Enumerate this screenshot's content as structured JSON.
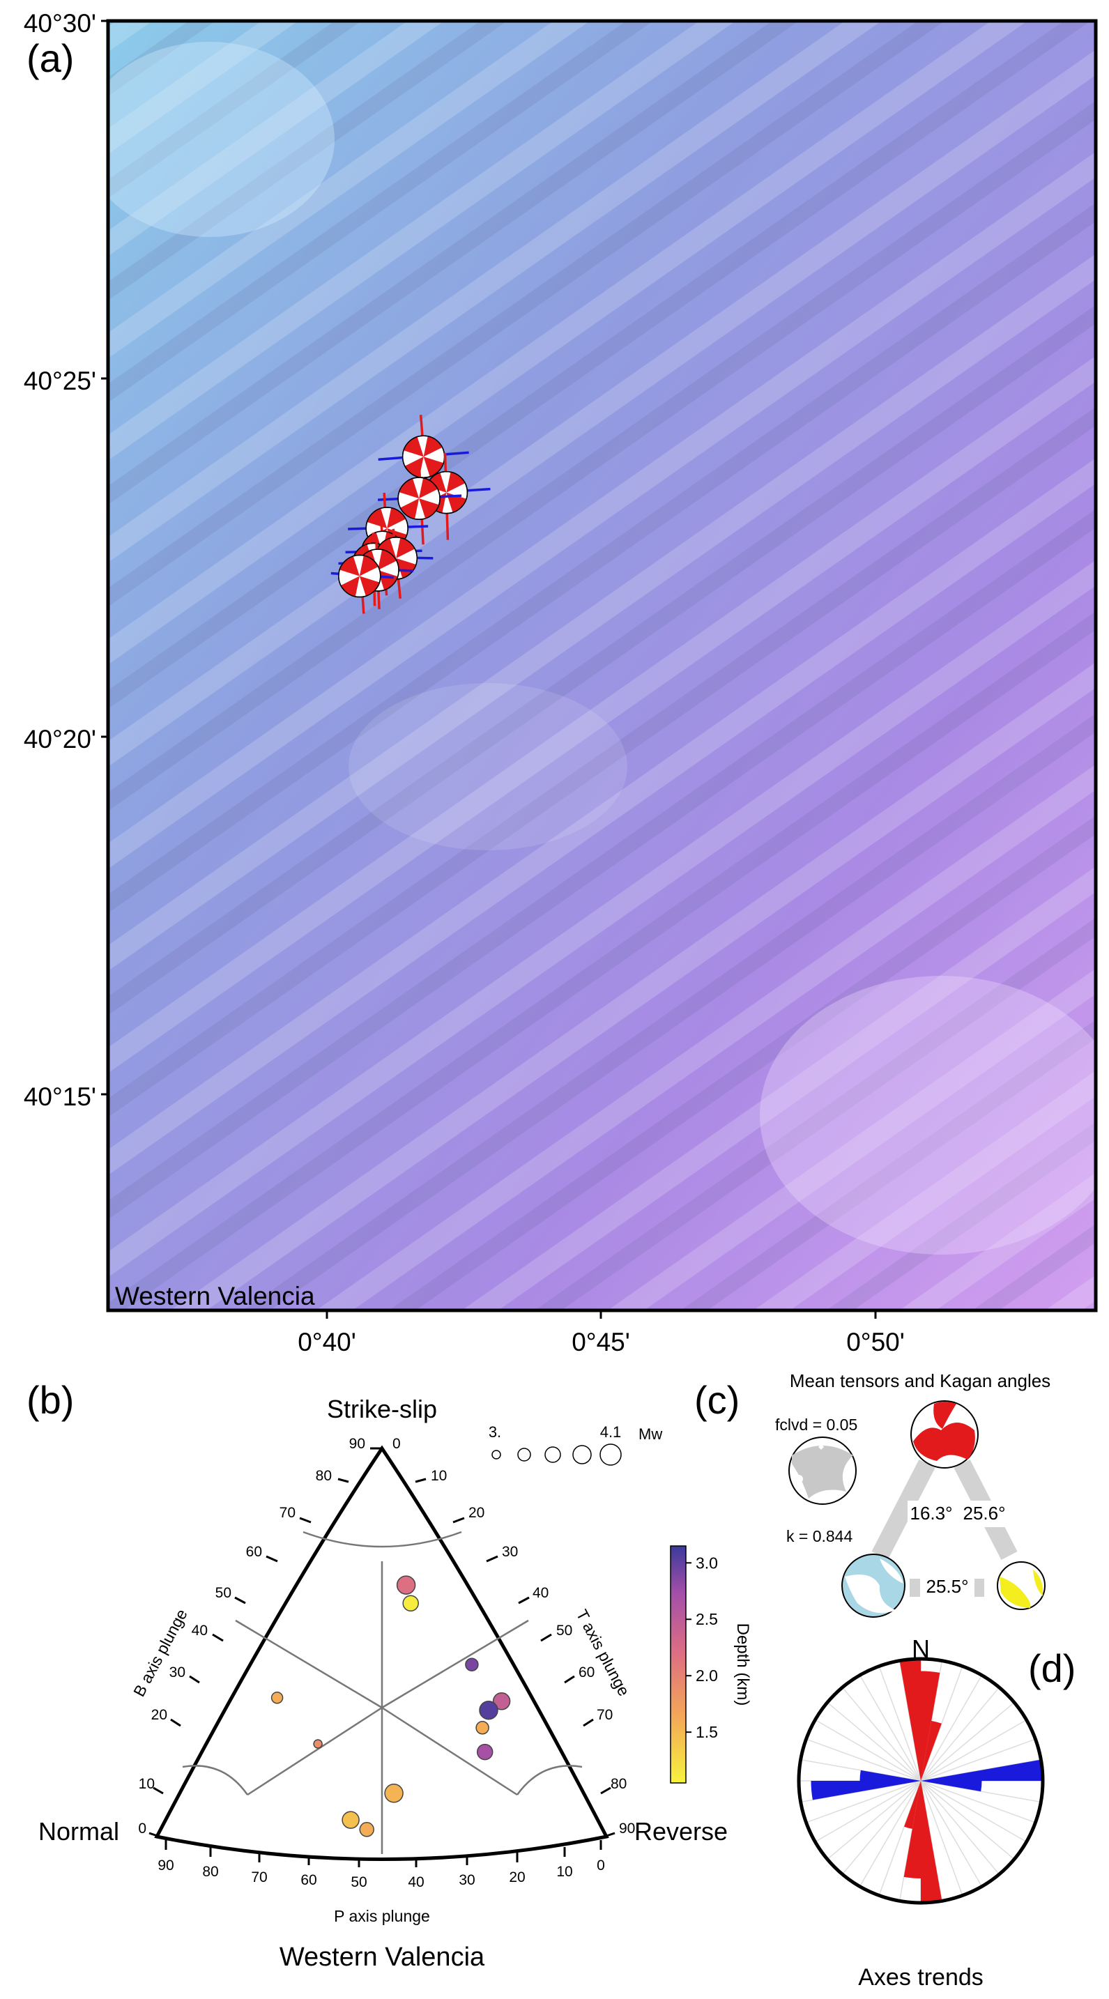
{
  "panels": {
    "a": {
      "label": "(a)"
    },
    "b": {
      "label": "(b)"
    },
    "c": {
      "label": "(c)"
    },
    "d": {
      "label": "(d)"
    }
  },
  "map": {
    "region_label": "Western Valencia",
    "lat_ticks": [
      "40°30'",
      "40°25'",
      "40°20'",
      "40°15'"
    ],
    "lon_ticks": [
      "0°40'",
      "0°45'",
      "0°50'"
    ],
    "colors": {
      "relief_top": "#7fc3e6",
      "relief_bottom": "#c07ce6",
      "p_axis": "#e31a1c",
      "t_axis": "#1a1adc"
    }
  },
  "ternary": {
    "corner_top": "Strike-slip",
    "corner_left": "Normal",
    "corner_right": "Reverse",
    "bottom_title": "Western Valencia",
    "axis_left": "B axis plunge",
    "axis_right": "T axis plunge",
    "axis_bottom": "P axis plunge",
    "ticks_left": [
      "90",
      "80",
      "70",
      "60",
      "50",
      "40",
      "30",
      "20",
      "10",
      "0"
    ],
    "ticks_right": [
      "0",
      "10",
      "20",
      "30",
      "40",
      "50",
      "60",
      "70",
      "80",
      "90"
    ],
    "ticks_bottom": [
      "90",
      "80",
      "70",
      "60",
      "50",
      "40",
      "30",
      "20",
      "10",
      "0"
    ],
    "size_legend": {
      "min_label": "3.",
      "max_label": "4.1",
      "unit": "Mw"
    },
    "colorbar": {
      "title": "Depth (km)",
      "ticks": [
        "3.0",
        "2.5",
        "2.0",
        "1.5"
      ],
      "min": 1.05,
      "max": 3.15
    }
  },
  "tensors": {
    "title": "Mean tensors and Kagan angles",
    "fclvd": "fclvd = 0.05",
    "k": "k = 0.844",
    "angles": [
      "16.3°",
      "25.6°",
      "25.5°"
    ]
  },
  "rose": {
    "north": "N",
    "title": "Axes trends"
  },
  "chart_data": [
    {
      "type": "map",
      "title": "Western Valencia",
      "ylim": [
        "40°12'",
        "40°30'"
      ],
      "xlim": [
        "0°36'",
        "0°54'"
      ],
      "events": [
        {
          "lon": "0°41'45\"",
          "lat": "40°23'55\""
        },
        {
          "lon": "0°42'10\"",
          "lat": "40°23'25\""
        },
        {
          "lon": "0°41'40\"",
          "lat": "40°23'20\""
        },
        {
          "lon": "0°41'05\"",
          "lat": "40°22'55\""
        },
        {
          "lon": "0°41'00\"",
          "lat": "40°22'35\""
        },
        {
          "lon": "0°40'50\"",
          "lat": "40°22'25\""
        },
        {
          "lon": "0°41'15\"",
          "lat": "40°22'30\""
        },
        {
          "lon": "0°40'55\"",
          "lat": "40°22'20\""
        },
        {
          "lon": "0°40'35\"",
          "lat": "40°22'15\""
        }
      ]
    },
    {
      "type": "scatter",
      "subtype": "ternary (Frohlich)",
      "title": "Western Valencia",
      "points": [
        {
          "b": 52,
          "t": 28,
          "p": 20,
          "depth": 2.2,
          "mw": 3.7
        },
        {
          "b": 49,
          "t": 30,
          "p": 21,
          "depth": 1.1,
          "mw": 3.5
        },
        {
          "b": 41,
          "t": 43,
          "p": 16,
          "depth": 2.9,
          "mw": 3.3
        },
        {
          "b": 36,
          "t": 50,
          "p": 14,
          "depth": 2.45,
          "mw": 3.6
        },
        {
          "b": 34,
          "t": 48,
          "p": 18,
          "depth": 3.05,
          "mw": 3.7
        },
        {
          "b": 31,
          "t": 48,
          "p": 21,
          "depth": 1.6,
          "mw": 3.3
        },
        {
          "b": 27,
          "t": 50,
          "p": 23,
          "depth": 2.7,
          "mw": 3.5
        },
        {
          "b": 36,
          "t": 17,
          "p": 47,
          "depth": 1.6,
          "mw": 3.2
        },
        {
          "b": 28,
          "t": 28,
          "p": 44,
          "depth": 1.9,
          "mw": 3.0
        },
        {
          "b": 19,
          "t": 42,
          "p": 39,
          "depth": 1.55,
          "mw": 3.7
        },
        {
          "b": 12,
          "t": 40,
          "p": 48,
          "depth": 1.45,
          "mw": 3.6
        },
        {
          "b": 8,
          "t": 44,
          "p": 48,
          "depth": 1.6,
          "mw": 3.4
        }
      ]
    },
    {
      "type": "rose",
      "title": "Axes trends",
      "p_axis_trends": [
        {
          "trend": 355,
          "count": 10
        },
        {
          "trend": 5,
          "count": 9
        },
        {
          "trend": 15,
          "count": 5
        },
        {
          "trend": 175,
          "count": 10
        },
        {
          "trend": 185,
          "count": 8
        },
        {
          "trend": 195,
          "count": 4
        }
      ],
      "t_axis_trends": [
        {
          "trend": 85,
          "count": 10
        },
        {
          "trend": 95,
          "count": 5
        },
        {
          "trend": 265,
          "count": 9
        },
        {
          "trend": 275,
          "count": 5
        }
      ]
    }
  ]
}
